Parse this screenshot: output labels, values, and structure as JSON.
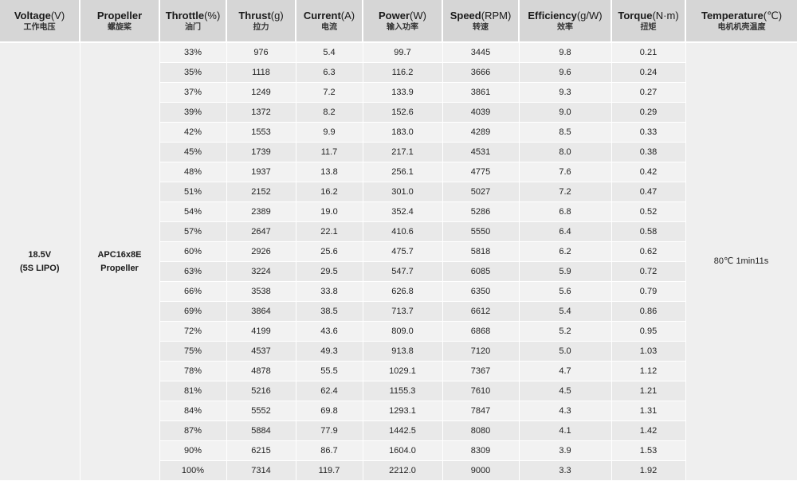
{
  "headers": [
    {
      "en": "Voltage",
      "unit": "(V)",
      "cn": "工作电压"
    },
    {
      "en": "Propeller",
      "unit": "",
      "cn": "螺旋桨"
    },
    {
      "en": "Throttle",
      "unit": "(%)",
      "cn": "油门"
    },
    {
      "en": "Thrust",
      "unit": "(g)",
      "cn": "拉力"
    },
    {
      "en": "Current",
      "unit": "(A)",
      "cn": "电流"
    },
    {
      "en": "Power",
      "unit": "(W)",
      "cn": "输入功率"
    },
    {
      "en": "Speed",
      "unit": "(RPM)",
      "cn": "转速"
    },
    {
      "en": "Efficiency",
      "unit": "(g/W)",
      "cn": "效率"
    },
    {
      "en": "Torque",
      "unit": "(N·m)",
      "cn": "扭矩"
    },
    {
      "en": "Temperature",
      "unit": "(℃)",
      "cn": "电机机壳温度"
    }
  ],
  "voltage": {
    "line1": "18.5V",
    "line2": "(5S LIPO)"
  },
  "propeller": {
    "line1": "APC16x8E",
    "line2": "Propeller"
  },
  "temperature": "80℃  1min11s",
  "rows": [
    [
      "33%",
      "976",
      "5.4",
      "99.7",
      "3445",
      "9.8",
      "0.21"
    ],
    [
      "35%",
      "1118",
      "6.3",
      "116.2",
      "3666",
      "9.6",
      "0.24"
    ],
    [
      "37%",
      "1249",
      "7.2",
      "133.9",
      "3861",
      "9.3",
      "0.27"
    ],
    [
      "39%",
      "1372",
      "8.2",
      "152.6",
      "4039",
      "9.0",
      "0.29"
    ],
    [
      "42%",
      "1553",
      "9.9",
      "183.0",
      "4289",
      "8.5",
      "0.33"
    ],
    [
      "45%",
      "1739",
      "11.7",
      "217.1",
      "4531",
      "8.0",
      "0.38"
    ],
    [
      "48%",
      "1937",
      "13.8",
      "256.1",
      "4775",
      "7.6",
      "0.42"
    ],
    [
      "51%",
      "2152",
      "16.2",
      "301.0",
      "5027",
      "7.2",
      "0.47"
    ],
    [
      "54%",
      "2389",
      "19.0",
      "352.4",
      "5286",
      "6.8",
      "0.52"
    ],
    [
      "57%",
      "2647",
      "22.1",
      "410.6",
      "5550",
      "6.4",
      "0.58"
    ],
    [
      "60%",
      "2926",
      "25.6",
      "475.7",
      "5818",
      "6.2",
      "0.62"
    ],
    [
      "63%",
      "3224",
      "29.5",
      "547.7",
      "6085",
      "5.9",
      "0.72"
    ],
    [
      "66%",
      "3538",
      "33.8",
      "626.8",
      "6350",
      "5.6",
      "0.79"
    ],
    [
      "69%",
      "3864",
      "38.5",
      "713.7",
      "6612",
      "5.4",
      "0.86"
    ],
    [
      "72%",
      "4199",
      "43.6",
      "809.0",
      "6868",
      "5.2",
      "0.95"
    ],
    [
      "75%",
      "4537",
      "49.3",
      "913.8",
      "7120",
      "5.0",
      "1.03"
    ],
    [
      "78%",
      "4878",
      "55.5",
      "1029.1",
      "7367",
      "4.7",
      "1.12"
    ],
    [
      "81%",
      "5216",
      "62.4",
      "1155.3",
      "7610",
      "4.5",
      "1.21"
    ],
    [
      "84%",
      "5552",
      "69.8",
      "1293.1",
      "7847",
      "4.3",
      "1.31"
    ],
    [
      "87%",
      "5884",
      "77.9",
      "1442.5",
      "8080",
      "4.1",
      "1.42"
    ],
    [
      "90%",
      "6215",
      "86.7",
      "1604.0",
      "8309",
      "3.9",
      "1.53"
    ],
    [
      "100%",
      "7314",
      "119.7",
      "2212.0",
      "9000",
      "3.3",
      "1.92"
    ]
  ]
}
